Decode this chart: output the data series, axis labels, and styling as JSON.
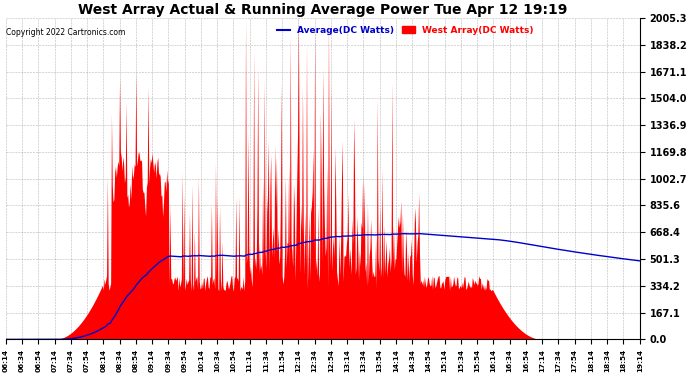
{
  "title": "West Array Actual & Running Average Power Tue Apr 12 19:19",
  "copyright": "Copyright 2022 Cartronics.com",
  "legend_avg": "Average(DC Watts)",
  "legend_west": "West Array(DC Watts)",
  "ymin": 0.0,
  "ymax": 2005.3,
  "yticks": [
    0.0,
    167.1,
    334.2,
    501.3,
    668.4,
    835.6,
    1002.7,
    1169.8,
    1336.9,
    1504.0,
    1671.1,
    1838.2,
    2005.3
  ],
  "bg_color": "#ffffff",
  "plot_bg_color": "#ffffff",
  "grid_color": "#888888",
  "fill_color": "#ff0000",
  "line_color": "#0000cc",
  "title_color": "#000000",
  "copyright_color": "#000000",
  "avg_legend_color": "#0000cc",
  "west_legend_color": "#ff0000"
}
